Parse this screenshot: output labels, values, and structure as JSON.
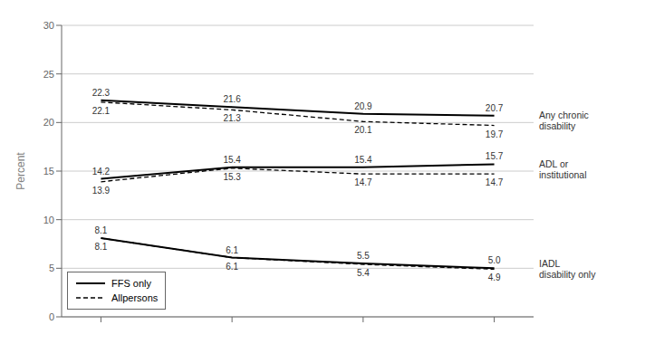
{
  "chart_data": {
    "type": "line",
    "x": [
      1,
      2,
      3,
      4
    ],
    "xlim": [
      0.7,
      4.3
    ],
    "xticks": [
      1,
      2,
      3,
      4
    ],
    "ylabel": "Percent",
    "ylim": [
      0,
      30
    ],
    "yticks": [
      0,
      5,
      10,
      15,
      20,
      25,
      30
    ],
    "tick_labels": "y",
    "grid": true,
    "legend": "lower left",
    "data_labels": true,
    "color": "#000000",
    "annotations": [
      "Any chronic\ndisability",
      "ADL or\ninstitutional",
      "IADL\ndisability only"
    ],
    "series": [
      {
        "name": "FFS only",
        "line_style": "solid",
        "values": [
          22.3,
          21.6,
          20.9,
          20.7
        ]
      },
      {
        "name": "Allpersons",
        "line_style": "dashed",
        "values": [
          22.1,
          21.3,
          20.1,
          19.7
        ]
      },
      {
        "name": "FFS only",
        "line_style": "solid",
        "values": [
          14.2,
          15.4,
          15.4,
          15.7
        ]
      },
      {
        "name": "Allpersons",
        "line_style": "dashed",
        "values": [
          13.9,
          15.3,
          14.7,
          14.7
        ]
      },
      {
        "name": "FFS only",
        "line_style": "solid",
        "values": [
          8.1,
          6.1,
          5.5,
          5.0
        ],
        "value_labels": [
          "8.1",
          "6.1",
          "5.5",
          "5.0"
        ]
      },
      {
        "name": "Allpersons",
        "line_style": "dashed",
        "values": [
          8.1,
          6.1,
          5.4,
          4.9
        ]
      }
    ]
  }
}
